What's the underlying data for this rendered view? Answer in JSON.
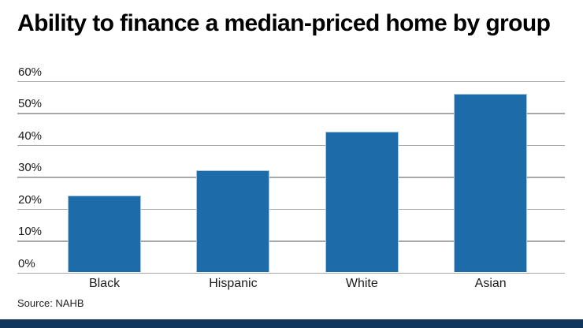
{
  "chart_data": {
    "type": "bar",
    "title": "Ability to finance a median-priced home by group",
    "categories": [
      "Black",
      "Hispanic",
      "White",
      "Asian"
    ],
    "values": [
      24,
      32,
      44,
      56
    ],
    "xlabel": "",
    "ylabel": "",
    "ylim": [
      0,
      60
    ],
    "ytick_interval": 10,
    "ytick_labels": [
      "0%",
      "10%",
      "20%",
      "30%",
      "40%",
      "50%",
      "60%"
    ],
    "grid": true,
    "legend": "none",
    "source": "Source: NAHB",
    "bar_color": "#1d6ba8",
    "bar_edge_color": "#a5cade",
    "gridline_color": "#a8a8a8",
    "text_color": "#1a1a1a",
    "footer_bar_color": "#12355b",
    "background_color": "#ffffff"
  }
}
